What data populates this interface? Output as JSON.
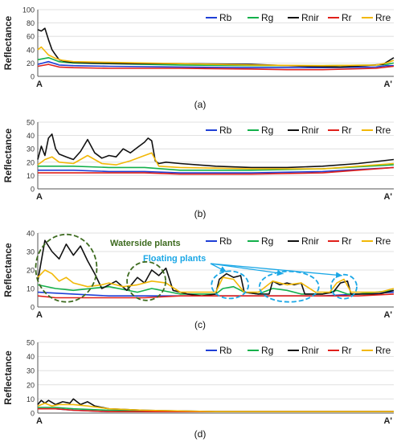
{
  "colors": {
    "Rb": "#1f3fd6",
    "Rg": "#13b04b",
    "Rnir": "#111111",
    "Rr": "#e0201b",
    "Rre": "#f2b807",
    "annotation_waterside": "#3d6b1f",
    "annotation_floating": "#1aa7e6",
    "axis": "#555555",
    "grid": "#d9d9d9"
  },
  "chart_data": [
    {
      "type": "line",
      "panel_label": "(a)",
      "ylabel": "Reflectance",
      "ylim": [
        0,
        100
      ],
      "yticks": [
        0,
        20,
        40,
        60,
        80,
        100
      ],
      "x_start_label": "A",
      "x_end_label": "A'",
      "x_range": [
        0,
        1
      ],
      "grid": true,
      "legend_position": "top-right",
      "series": [
        {
          "name": "Rb",
          "color_key": "Rb",
          "x": [
            0,
            0.03,
            0.06,
            0.1,
            0.2,
            0.4,
            0.6,
            0.8,
            0.95,
            0.98,
            1.0
          ],
          "y": [
            18,
            22,
            17,
            16,
            15,
            14,
            13,
            13,
            14,
            16,
            16
          ]
        },
        {
          "name": "Rg",
          "color_key": "Rg",
          "x": [
            0,
            0.03,
            0.06,
            0.1,
            0.2,
            0.4,
            0.6,
            0.8,
            0.95,
            0.98,
            1.0
          ],
          "y": [
            25,
            28,
            22,
            20,
            19,
            17,
            16,
            16,
            17,
            18,
            20
          ]
        },
        {
          "name": "Rnir",
          "color_key": "Rnir",
          "x": [
            0,
            0.01,
            0.02,
            0.03,
            0.04,
            0.05,
            0.06,
            0.08,
            0.1,
            0.15,
            0.25,
            0.4,
            0.6,
            0.75,
            0.85,
            0.92,
            0.97,
            1.0
          ],
          "y": [
            70,
            68,
            72,
            55,
            40,
            32,
            25,
            22,
            21,
            20,
            19,
            19,
            18,
            15,
            14,
            16,
            18,
            28
          ]
        },
        {
          "name": "Rr",
          "color_key": "Rr",
          "x": [
            0,
            0.03,
            0.06,
            0.1,
            0.2,
            0.4,
            0.6,
            0.7,
            0.8,
            0.95,
            0.98,
            1.0
          ],
          "y": [
            15,
            18,
            14,
            13,
            12,
            12,
            11,
            10,
            10,
            12,
            14,
            15
          ]
        },
        {
          "name": "Rre",
          "color_key": "Rre",
          "x": [
            0,
            0.01,
            0.02,
            0.03,
            0.05,
            0.07,
            0.1,
            0.2,
            0.4,
            0.6,
            0.8,
            0.95,
            0.98,
            1.0
          ],
          "y": [
            40,
            44,
            38,
            32,
            27,
            24,
            22,
            21,
            19,
            17,
            16,
            17,
            20,
            24
          ]
        }
      ]
    },
    {
      "type": "line",
      "panel_label": "(b)",
      "ylabel": "Reflectance",
      "ylim": [
        0,
        50
      ],
      "yticks": [
        0,
        10,
        20,
        30,
        40,
        50
      ],
      "x_start_label": "A",
      "x_end_label": "A'",
      "x_range": [
        0,
        1
      ],
      "grid": true,
      "legend_position": "top-right",
      "series": [
        {
          "name": "Rb",
          "color_key": "Rb",
          "x": [
            0,
            0.1,
            0.2,
            0.3,
            0.4,
            0.6,
            0.8,
            1.0
          ],
          "y": [
            14,
            14,
            13,
            13,
            12,
            12,
            13,
            16
          ]
        },
        {
          "name": "Rg",
          "color_key": "Rg",
          "x": [
            0,
            0.1,
            0.2,
            0.3,
            0.4,
            0.6,
            0.8,
            1.0
          ],
          "y": [
            17,
            17,
            16,
            16,
            14,
            14,
            15,
            18
          ]
        },
        {
          "name": "Rnir",
          "color_key": "Rnir",
          "x": [
            0,
            0.01,
            0.02,
            0.03,
            0.04,
            0.05,
            0.06,
            0.08,
            0.1,
            0.12,
            0.14,
            0.16,
            0.18,
            0.2,
            0.22,
            0.24,
            0.26,
            0.28,
            0.3,
            0.31,
            0.32,
            0.33,
            0.34,
            0.36,
            0.4,
            0.5,
            0.6,
            0.7,
            0.8,
            0.9,
            1.0
          ],
          "y": [
            22,
            32,
            25,
            38,
            41,
            30,
            26,
            24,
            22,
            28,
            37,
            27,
            23,
            25,
            24,
            30,
            27,
            31,
            35,
            38,
            36,
            21,
            19,
            20,
            19,
            17,
            16,
            16,
            17,
            19,
            22
          ]
        },
        {
          "name": "Rr",
          "color_key": "Rr",
          "x": [
            0,
            0.1,
            0.2,
            0.3,
            0.4,
            0.6,
            0.8,
            1.0
          ],
          "y": [
            12,
            12,
            12,
            12,
            11,
            11,
            12,
            16
          ]
        },
        {
          "name": "Rre",
          "color_key": "Rre",
          "x": [
            0,
            0.02,
            0.04,
            0.06,
            0.1,
            0.14,
            0.18,
            0.22,
            0.26,
            0.3,
            0.32,
            0.34,
            0.4,
            0.6,
            0.8,
            1.0
          ],
          "y": [
            18,
            22,
            24,
            20,
            19,
            25,
            19,
            18,
            21,
            25,
            27,
            17,
            16,
            15,
            15,
            19
          ]
        }
      ]
    },
    {
      "type": "line",
      "panel_label": "(c)",
      "ylabel": "Reflectance",
      "ylim": [
        0,
        40
      ],
      "yticks": [
        0,
        10,
        20,
        30,
        40
      ],
      "x_start_label": "A",
      "x_end_label": "A'",
      "x_range": [
        0,
        1
      ],
      "grid": true,
      "legend_position": "top-right",
      "annotations": [
        {
          "text": "Waterside plants",
          "color_key": "annotation_waterside"
        },
        {
          "text": "Floating plants",
          "color_key": "annotation_floating"
        }
      ],
      "series": [
        {
          "name": "Rb",
          "color_key": "Rb",
          "x": [
            0,
            0.1,
            0.2,
            0.3,
            0.4,
            0.5,
            0.6,
            0.7,
            0.8,
            0.9,
            1.0
          ],
          "y": [
            8,
            7,
            6,
            6,
            6,
            6,
            6,
            6,
            6,
            7,
            8
          ]
        },
        {
          "name": "Rg",
          "color_key": "Rg",
          "x": [
            0,
            0.05,
            0.1,
            0.2,
            0.28,
            0.32,
            0.4,
            0.5,
            0.52,
            0.55,
            0.58,
            0.62,
            0.66,
            0.7,
            0.74,
            0.8,
            0.84,
            0.87,
            0.9,
            1.0
          ],
          "y": [
            12,
            10,
            9,
            11,
            8,
            10,
            7,
            7,
            10,
            11,
            8,
            7,
            10,
            9,
            7,
            7,
            9,
            7,
            7,
            9
          ]
        },
        {
          "name": "Rnir",
          "color_key": "Rnir",
          "x": [
            0,
            0.02,
            0.04,
            0.06,
            0.08,
            0.1,
            0.12,
            0.14,
            0.16,
            0.18,
            0.2,
            0.22,
            0.25,
            0.28,
            0.3,
            0.32,
            0.34,
            0.36,
            0.38,
            0.42,
            0.46,
            0.5,
            0.51,
            0.53,
            0.55,
            0.57,
            0.58,
            0.62,
            0.65,
            0.66,
            0.68,
            0.7,
            0.72,
            0.74,
            0.75,
            0.8,
            0.83,
            0.85,
            0.87,
            0.88,
            0.92,
            0.96,
            1.0
          ],
          "y": [
            14,
            36,
            30,
            26,
            34,
            28,
            33,
            25,
            18,
            10,
            12,
            14,
            9,
            16,
            13,
            20,
            17,
            21,
            9,
            7,
            6,
            7,
            15,
            18,
            16,
            17,
            8,
            7,
            7,
            14,
            12,
            13,
            12,
            13,
            7,
            7,
            8,
            13,
            14,
            7,
            7,
            7,
            9
          ]
        },
        {
          "name": "Rr",
          "color_key": "Rr",
          "x": [
            0,
            0.05,
            0.1,
            0.2,
            0.3,
            0.4,
            0.5,
            0.6,
            0.7,
            0.8,
            0.9,
            1.0
          ],
          "y": [
            6,
            5,
            5,
            5,
            5,
            6,
            6,
            6,
            6,
            6,
            6,
            7
          ]
        },
        {
          "name": "Rre",
          "color_key": "Rre",
          "x": [
            0,
            0.02,
            0.04,
            0.06,
            0.08,
            0.1,
            0.14,
            0.18,
            0.2,
            0.24,
            0.28,
            0.32,
            0.36,
            0.4,
            0.46,
            0.5,
            0.52,
            0.55,
            0.58,
            0.62,
            0.66,
            0.7,
            0.74,
            0.78,
            0.82,
            0.84,
            0.86,
            0.88,
            0.92,
            0.96,
            1.0
          ],
          "y": [
            16,
            20,
            18,
            14,
            16,
            13,
            11,
            12,
            13,
            11,
            12,
            14,
            13,
            8,
            8,
            8,
            16,
            15,
            8,
            8,
            14,
            12,
            13,
            8,
            8,
            13,
            15,
            8,
            8,
            8,
            10
          ]
        }
      ]
    },
    {
      "type": "line",
      "panel_label": "(d)",
      "ylabel": "Reflectance",
      "ylim": [
        0,
        50
      ],
      "yticks": [
        0,
        10,
        20,
        30,
        40,
        50
      ],
      "x_start_label": "A",
      "x_end_label": "A'",
      "x_range": [
        0,
        1
      ],
      "grid": true,
      "legend_position": "top-right",
      "series": [
        {
          "name": "Rb",
          "color_key": "Rb",
          "x": [
            0,
            0.05,
            0.1,
            0.2,
            0.4,
            0.6,
            0.8,
            1.0
          ],
          "y": [
            3,
            3,
            2,
            1,
            1,
            1,
            1,
            1
          ]
        },
        {
          "name": "Rg",
          "color_key": "Rg",
          "x": [
            0,
            0.05,
            0.1,
            0.2,
            0.4,
            0.6,
            0.8,
            1.0
          ],
          "y": [
            4,
            4,
            3,
            2,
            1,
            1,
            1,
            1
          ]
        },
        {
          "name": "Rnir",
          "color_key": "Rnir",
          "x": [
            0,
            0.01,
            0.02,
            0.03,
            0.05,
            0.07,
            0.09,
            0.1,
            0.12,
            0.14,
            0.16,
            0.2,
            0.3,
            0.5,
            0.7,
            1.0
          ],
          "y": [
            6,
            9,
            7,
            9,
            6,
            8,
            7,
            10,
            6,
            8,
            5,
            3,
            2,
            1,
            1,
            1
          ]
        },
        {
          "name": "Rr",
          "color_key": "Rr",
          "x": [
            0,
            0.05,
            0.1,
            0.2,
            0.4,
            0.6,
            0.8,
            1.0
          ],
          "y": [
            3,
            3,
            2,
            1,
            1,
            1,
            1,
            1
          ]
        },
        {
          "name": "Rre",
          "color_key": "Rre",
          "x": [
            0,
            0.02,
            0.04,
            0.06,
            0.1,
            0.14,
            0.2,
            0.3,
            0.5,
            1.0
          ],
          "y": [
            5,
            7,
            5,
            6,
            6,
            5,
            3,
            2,
            1,
            1
          ]
        }
      ]
    }
  ]
}
